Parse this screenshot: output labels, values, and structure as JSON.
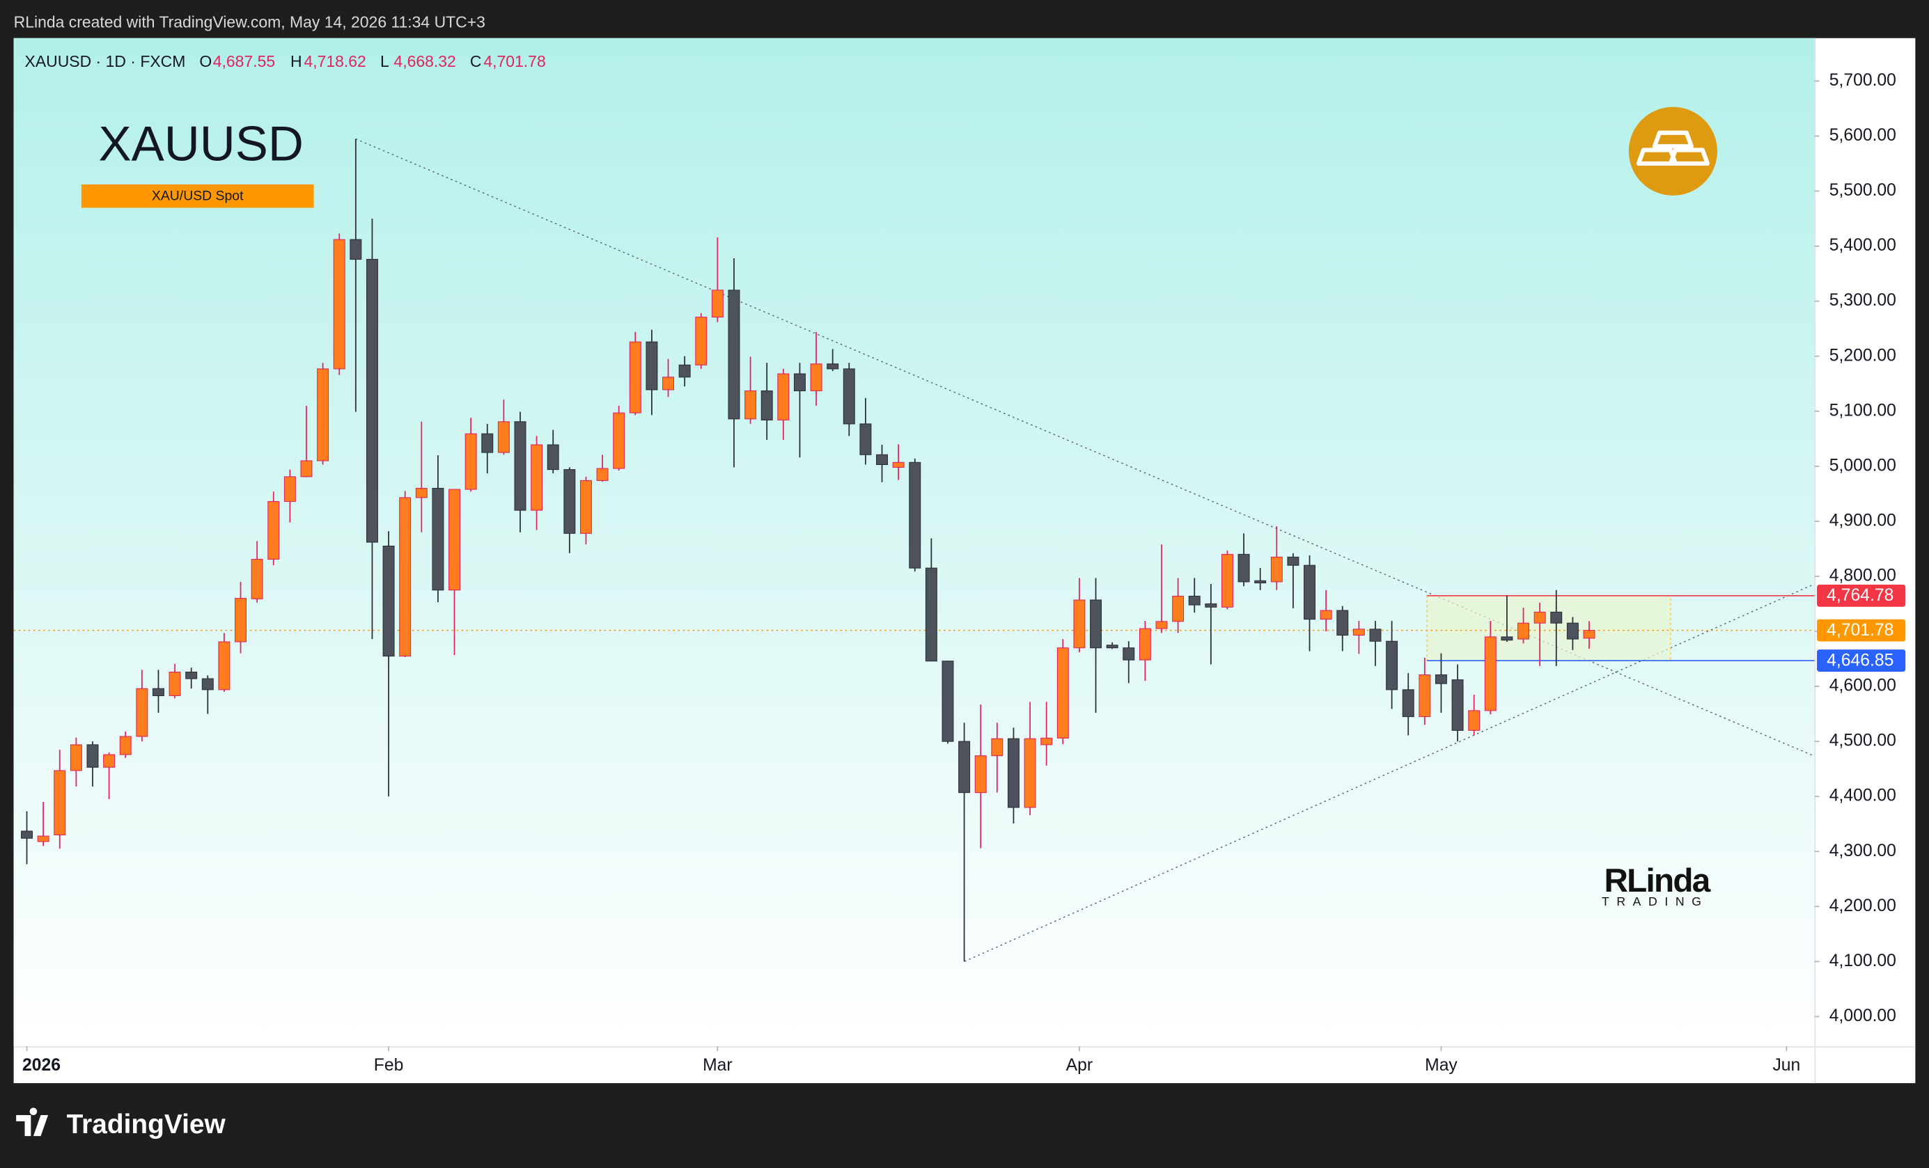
{
  "attribution": "RLinda created with TradingView.com, May 14, 2026 11:34 UTC+3",
  "brand": "TradingView",
  "chart_data": {
    "type": "candlestick",
    "title": "XAUUSD",
    "subtitle": "XAU/USD Spot",
    "legend_symbol": "XAUUSD · 1D · FXCM",
    "ohlc_legend": [
      {
        "key": "O",
        "value": "4,687.55"
      },
      {
        "key": "H",
        "value": "4,718.62"
      },
      {
        "key": "L",
        "value": "4,668.32"
      },
      {
        "key": "C",
        "value": "4,701.78"
      }
    ],
    "watermark": [
      "RLinda",
      "TRADING"
    ],
    "up_color": "#ff7d1f",
    "down_color": "#4d525c",
    "up_wick_color": "#e0245e",
    "down_wick_color": "#2b2e35",
    "grid": false,
    "xlim": [
      -0.8,
      108.7
    ],
    "xticks": [
      {
        "value": 0,
        "label": "2026"
      },
      {
        "value": 22,
        "label": "Feb"
      },
      {
        "value": 42,
        "label": "Mar"
      },
      {
        "value": 64,
        "label": "Apr"
      },
      {
        "value": 86,
        "label": "May"
      },
      {
        "value": 107,
        "label": "Jun"
      }
    ],
    "ylim": [
      3946,
      5778
    ],
    "yticks": [
      {
        "value": 5700,
        "label": "5,700.00"
      },
      {
        "value": 5600,
        "label": "5,600.00"
      },
      {
        "value": 5500,
        "label": "5,500.00"
      },
      {
        "value": 5400,
        "label": "5,400.00"
      },
      {
        "value": 5300,
        "label": "5,300.00"
      },
      {
        "value": 5200,
        "label": "5,200.00"
      },
      {
        "value": 5100,
        "label": "5,100.00"
      },
      {
        "value": 5000,
        "label": "5,000.00"
      },
      {
        "value": 4900,
        "label": "4,900.00"
      },
      {
        "value": 4800,
        "label": "4,800.00"
      },
      {
        "value": 4700,
        "label": "4,700.00"
      },
      {
        "value": 4600,
        "label": "4,600.00"
      },
      {
        "value": 4500,
        "label": "4,500.00"
      },
      {
        "value": 4400,
        "label": "4,400.00"
      },
      {
        "value": 4300,
        "label": "4,300.00"
      },
      {
        "value": 4200,
        "label": "4,200.00"
      },
      {
        "value": 4100,
        "label": "4,100.00"
      },
      {
        "value": 4000,
        "label": "4,000.00"
      }
    ],
    "price_lines": [
      {
        "value": 4764.78,
        "label": "4,764.78",
        "color": "#f23645"
      },
      {
        "value": 4701.78,
        "label": "4,701.78",
        "color": "#ff9800"
      },
      {
        "value": 4646.85,
        "label": "4,646.85",
        "color": "#2962ff"
      }
    ],
    "open": [
      4337,
      4318,
      4330,
      4447,
      4494,
      4453,
      4476,
      4509,
      4596,
      4583,
      4626,
      4614,
      4594,
      4681,
      4759,
      4831,
      4936,
      4981,
      5010,
      5177,
      5412,
      5376,
      4855,
      4655,
      4943,
      4960,
      4775,
      4958,
      5059,
      5025,
      5081,
      4920,
      5039,
      4994,
      4878,
      4974,
      4996,
      5097,
      5226,
      5139,
      5184,
      5184,
      5271,
      5320,
      5086,
      5137,
      5084,
      5168,
      5137,
      5186,
      5177,
      5077,
      5021,
      4998,
      5007,
      4815,
      4646,
      4500,
      4407,
      4474,
      4505,
      4380,
      4494,
      4506,
      4670,
      4757,
      4675,
      4670,
      4648,
      4705,
      4718,
      4764,
      4750,
      4744,
      4840,
      4792,
      4790,
      4835,
      4820,
      4722,
      4738,
      4693,
      4704,
      4682,
      4594,
      4545,
      4621,
      4612,
      4520,
      4556,
      4690,
      4686,
      4715,
      4735,
      4715,
      4687.55
    ],
    "high": [
      4373,
      4390,
      4485,
      4507,
      4500,
      4480,
      4518,
      4630,
      4630,
      4641,
      4634,
      4620,
      4697,
      4790,
      4864,
      4954,
      4994,
      5110,
      5188,
      5423,
      5595,
      5450,
      4882,
      4955,
      5081,
      5020,
      4958,
      5088,
      5077,
      5121,
      5099,
      5055,
      5066,
      4998,
      4981,
      5021,
      5110,
      5244,
      5248,
      5195,
      5200,
      5278,
      5416,
      5378,
      5199,
      5188,
      5177,
      5188,
      5244,
      5213,
      5188,
      5124,
      5039,
      5040,
      5014,
      4869,
      4646,
      4534,
      4567,
      4534,
      4525,
      4572,
      4572,
      4686,
      4797,
      4797,
      4680,
      4682,
      4719,
      4858,
      4797,
      4797,
      4786,
      4847,
      4878,
      4815,
      4891,
      4842,
      4838,
      4775,
      4746,
      4719,
      4719,
      4719,
      4624,
      4652,
      4660,
      4640,
      4585,
      4719,
      4765,
      4743,
      4752,
      4775,
      4726,
      4718.62
    ],
    "low": [
      4277,
      4310,
      4305,
      4418,
      4418,
      4395,
      4470,
      4500,
      4552,
      4578,
      4596,
      4550,
      4590,
      4660,
      4752,
      4820,
      4898,
      4980,
      5003,
      5166,
      5099,
      4686,
      4400,
      4653,
      4880,
      4753,
      4657,
      4954,
      4987,
      5021,
      4880,
      4884,
      4987,
      4842,
      4858,
      4972,
      4992,
      5093,
      5093,
      5126,
      5145,
      5177,
      5262,
      4998,
      5077,
      5048,
      5048,
      5016,
      5110,
      5173,
      5055,
      5003,
      4971,
      4975,
      4809,
      4646,
      4496,
      4100,
      4306,
      4407,
      4351,
      4366,
      4456,
      4495,
      4662,
      4552,
      4668,
      4606,
      4610,
      4697,
      4697,
      4734,
      4640,
      4740,
      4782,
      4775,
      4775,
      4742,
      4664,
      4700,
      4664,
      4659,
      4637,
      4559,
      4511,
      4530,
      4552,
      4500,
      4511,
      4549,
      4681,
      4678,
      4637,
      4637,
      4666,
      4668.32
    ],
    "close": [
      4324,
      4328,
      4447,
      4494,
      4453,
      4476,
      4509,
      4596,
      4583,
      4626,
      4614,
      4594,
      4681,
      4760,
      4831,
      4936,
      4981,
      5010,
      5177,
      5412,
      5376,
      4862,
      4655,
      4943,
      4960,
      4775,
      4958,
      5059,
      5025,
      5081,
      4920,
      5039,
      4994,
      4878,
      4974,
      4996,
      5097,
      5226,
      5139,
      5162,
      5162,
      5271,
      5320,
      5086,
      5137,
      5084,
      5168,
      5137,
      5186,
      5177,
      5077,
      5021,
      5003,
      5007,
      4815,
      4646,
      4500,
      4407,
      4474,
      4505,
      4380,
      4505,
      4506,
      4670,
      4757,
      4670,
      4670,
      4648,
      4705,
      4718,
      4764,
      4748,
      4744,
      4840,
      4790,
      4788,
      4835,
      4820,
      4722,
      4738,
      4693,
      4704,
      4682,
      4594,
      4545,
      4621,
      4605,
      4520,
      4556,
      4690,
      4684,
      4715,
      4735,
      4715,
      4686,
      4701.78
    ]
  }
}
